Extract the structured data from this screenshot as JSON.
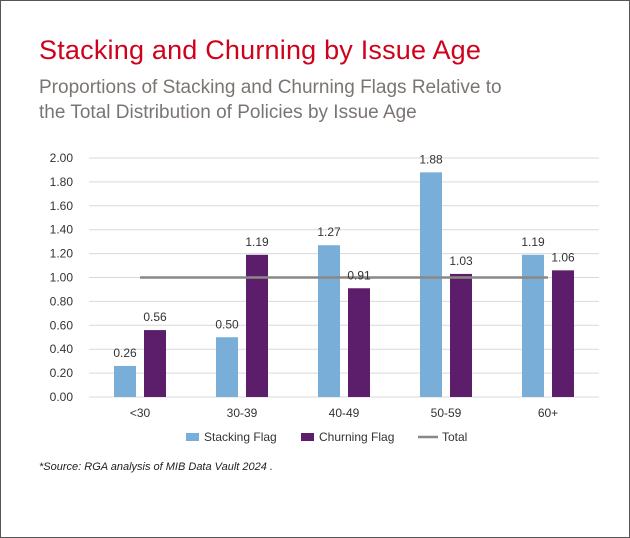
{
  "header": {
    "title": "Stacking and Churning by Issue Age",
    "subtitle_line1": "Proportions of Stacking and Churning Flags Relative to",
    "subtitle_line2": "the Total Distribution of Policies by Issue Age"
  },
  "footer": {
    "source": "*Source: RGA analysis of MIB Data Vault 2024 ."
  },
  "colors": {
    "title": "#d0021b",
    "subtitle": "#7b7572",
    "stacking": "#78aed7",
    "churning": "#5c1e6b",
    "total": "#8a8785",
    "grid": "#d9d9d9"
  },
  "chart_data": {
    "type": "bar",
    "categories": [
      "<30",
      "30-39",
      "40-49",
      "50-59",
      "60+"
    ],
    "series": [
      {
        "name": "Stacking Flag",
        "values": [
          0.26,
          0.5,
          1.27,
          1.88,
          1.19
        ]
      },
      {
        "name": "Churning Flag",
        "values": [
          0.56,
          1.19,
          0.91,
          1.03,
          1.06
        ]
      }
    ],
    "reference_line": {
      "name": "Total",
      "value": 1.0,
      "style": "line"
    },
    "yticks": [
      "0.00",
      "0.20",
      "0.40",
      "0.60",
      "0.80",
      "1.00",
      "1.20",
      "1.40",
      "1.60",
      "1.80",
      "2.00"
    ],
    "ylim": [
      0,
      2.0
    ],
    "grid": true,
    "legend_position": "bottom-center",
    "data_labels": true
  }
}
